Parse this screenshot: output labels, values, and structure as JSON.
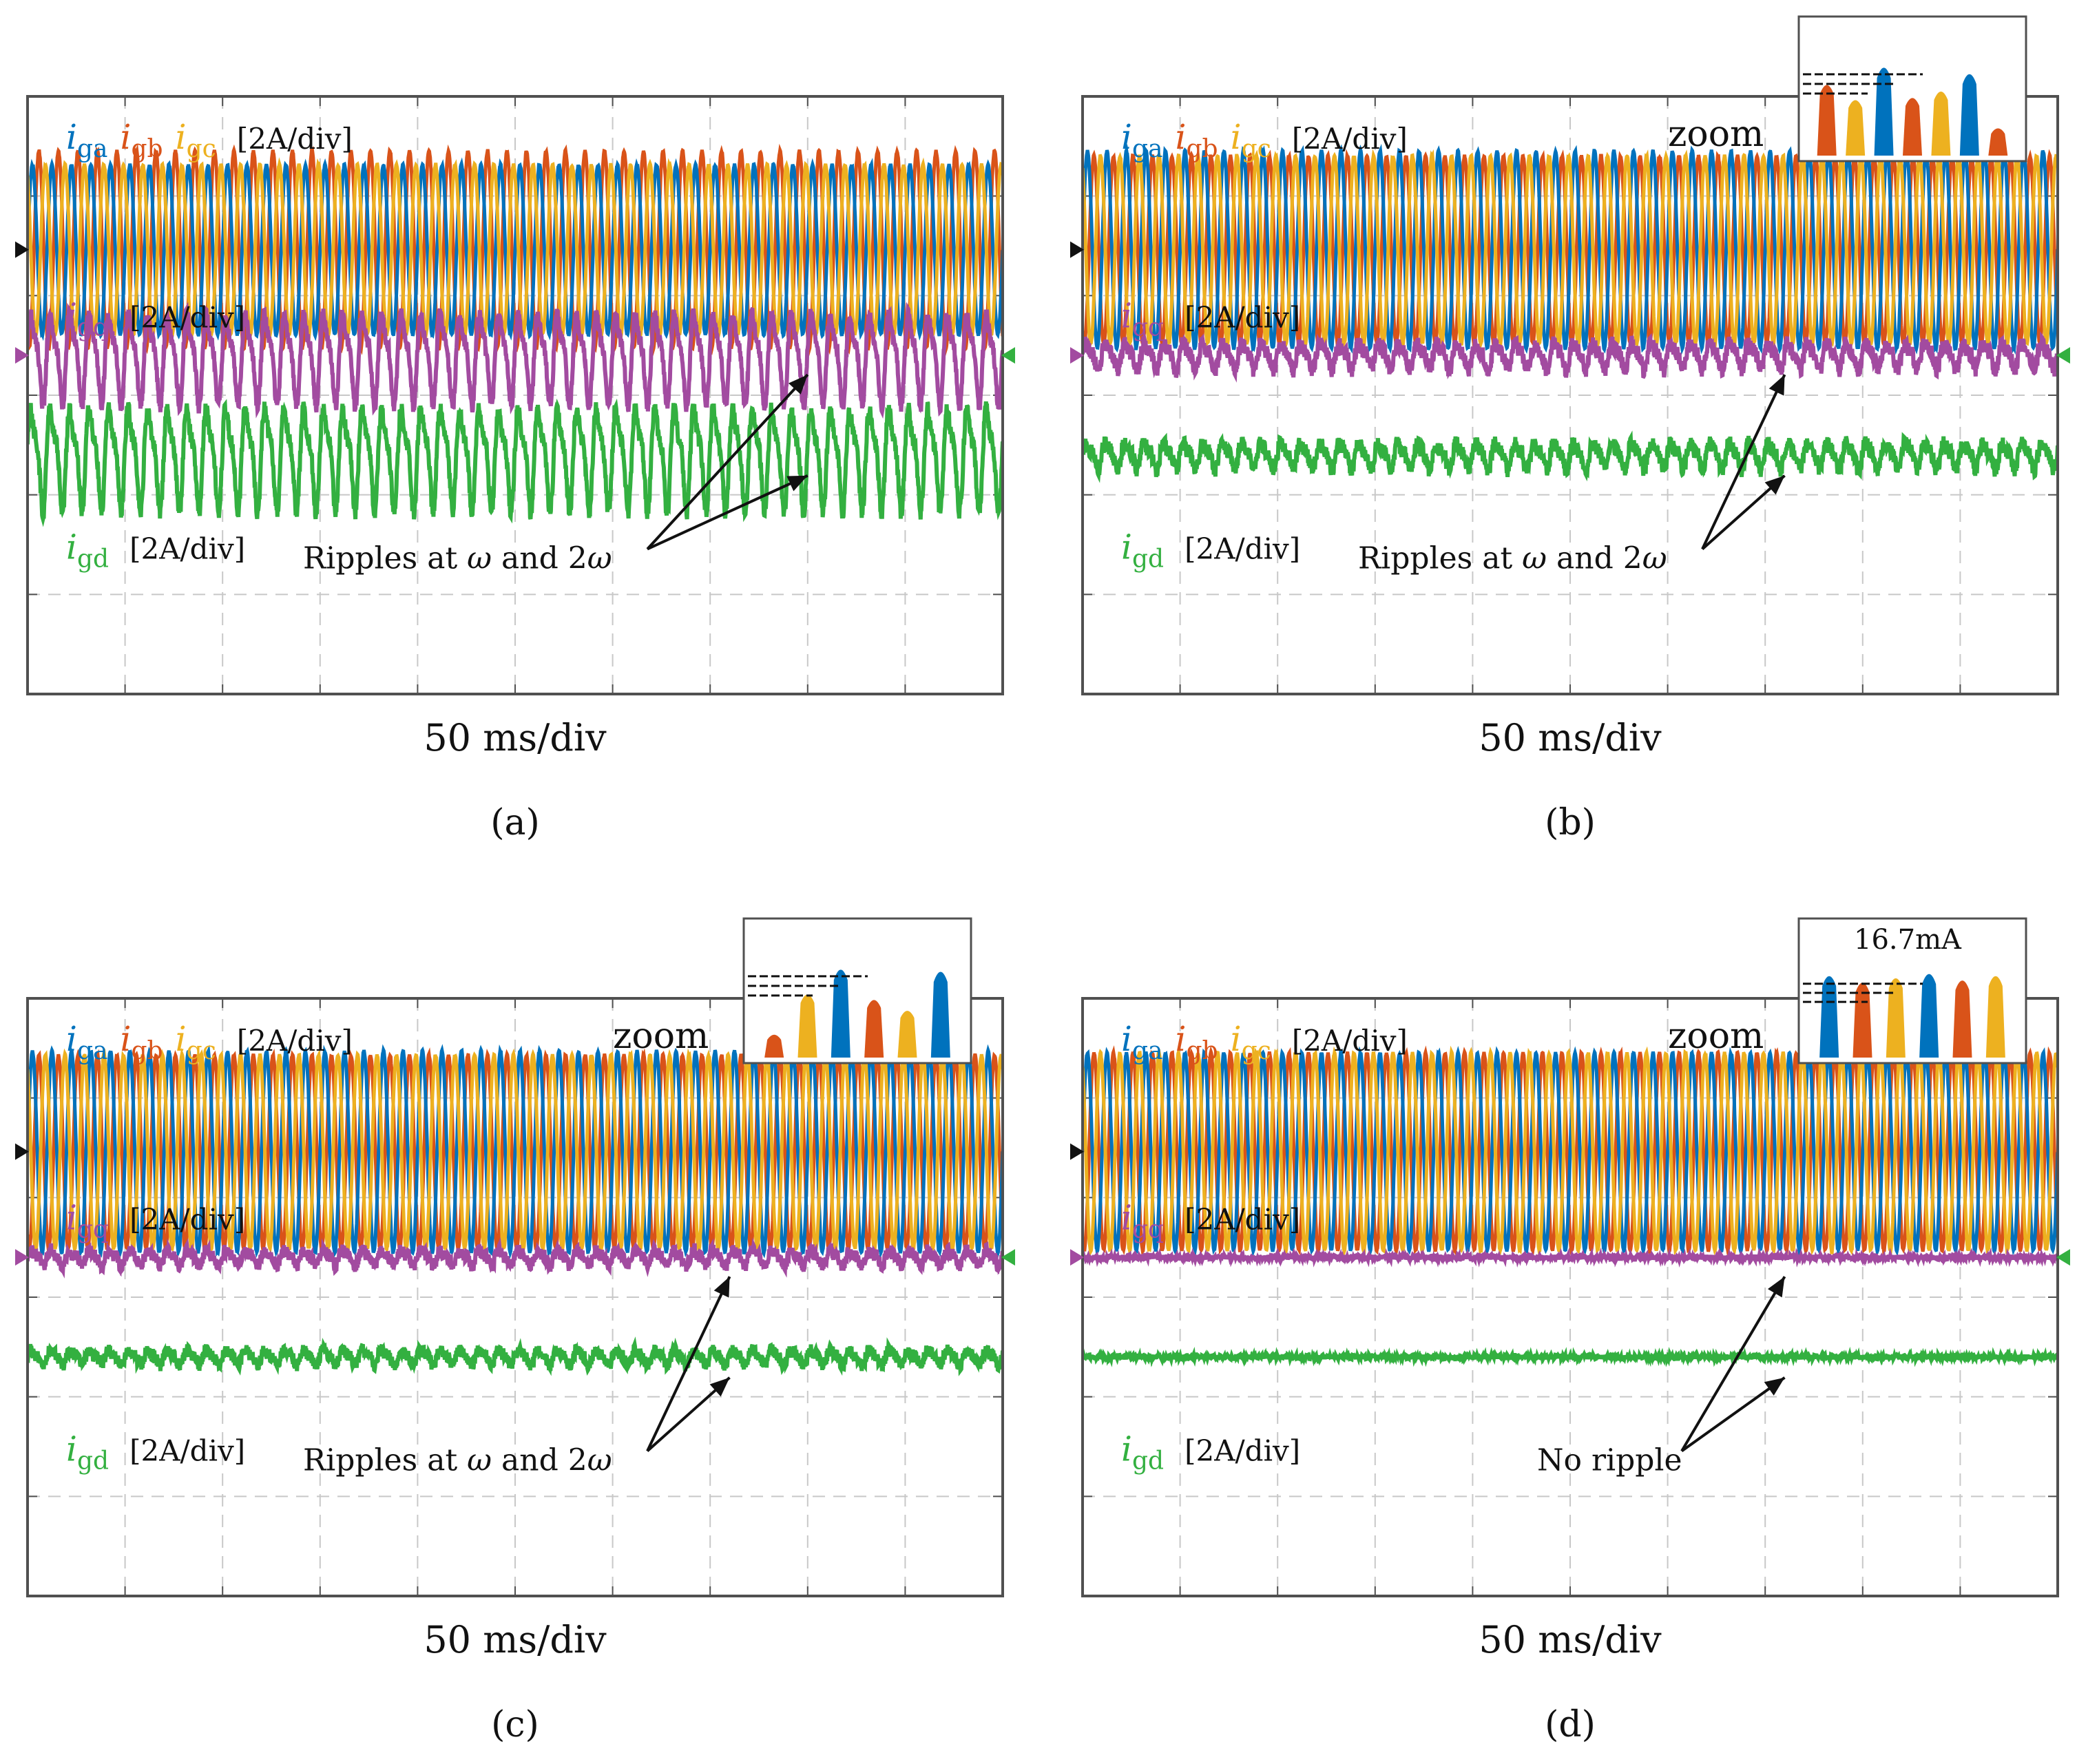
{
  "colors": {
    "ia": "#0072BD",
    "ib": "#D95319",
    "ic": "#EDB120",
    "iq": "#A24BA0",
    "id": "#33B040",
    "grid": "#c8c8c8",
    "frame": "#505050",
    "text": "#111111"
  },
  "chart_data": [
    {
      "panel": "a",
      "type": "line",
      "caption": "(a)",
      "xlabel": "50 ms/div",
      "grid_divisions": {
        "x": 10,
        "y": 6
      },
      "phase_label": {
        "i": "i",
        "a": "ga",
        "b": "gb",
        "c": "gc",
        "scale": "[2A/div]"
      },
      "q_label": {
        "i": "i",
        "sub": "gq",
        "scale": "[2A/div]"
      },
      "d_label": {
        "i": "i",
        "sub": "gd",
        "scale": "[2A/div]"
      },
      "annotation": {
        "pre": "Ripples at ",
        "w1": "ω",
        "mid": " and 2",
        "w2": "ω"
      },
      "zoom_label": "",
      "inset": null,
      "series": [
        {
          "name": "i_ga",
          "color_key": "ia",
          "amplitude_div": 0.86,
          "cycles": 50
        },
        {
          "name": "i_gb",
          "color_key": "ib",
          "amplitude_div": 1.0,
          "cycles": 50
        },
        {
          "name": "i_gc",
          "color_key": "ic",
          "amplitude_div": 0.86,
          "cycles": 50
        },
        {
          "name": "i_gq",
          "color_key": "iq",
          "ripple_div": 0.25,
          "noise_div": 0.04
        },
        {
          "name": "i_gd",
          "color_key": "id",
          "ripple_div": 0.28,
          "noise_div": 0.05
        }
      ]
    },
    {
      "panel": "b",
      "type": "line",
      "caption": "(b)",
      "xlabel": "50 ms/div",
      "grid_divisions": {
        "x": 10,
        "y": 6
      },
      "phase_label": {
        "i": "i",
        "a": "ga",
        "b": "gb",
        "c": "gc",
        "scale": "[2A/div]"
      },
      "q_label": {
        "i": "i",
        "sub": "gq",
        "scale": "[2A/div]"
      },
      "d_label": {
        "i": "i",
        "sub": "gd",
        "scale": "[2A/div]"
      },
      "annotation": {
        "pre": "Ripples at ",
        "w1": "ω",
        "mid": " and 2",
        "w2": "ω"
      },
      "zoom_label": "zoom",
      "inset": {
        "peaks": [
          "ib",
          "ic",
          "ia",
          "ib",
          "ic",
          "ia",
          "ib"
        ],
        "heights": [
          0.62,
          0.48,
          0.78,
          0.5,
          0.56,
          0.72,
          0.22
        ],
        "value_label": ""
      },
      "series": [
        {
          "name": "i_ga",
          "color_key": "ia",
          "amplitude_div": 1.0,
          "cycles": 50
        },
        {
          "name": "i_gb",
          "color_key": "ib",
          "amplitude_div": 0.95,
          "cycles": 50
        },
        {
          "name": "i_gc",
          "color_key": "ic",
          "amplitude_div": 0.95,
          "cycles": 50
        },
        {
          "name": "i_gq",
          "color_key": "iq",
          "ripple_div": 0.07,
          "noise_div": 0.05
        },
        {
          "name": "i_gd",
          "color_key": "id",
          "ripple_div": 0.07,
          "noise_div": 0.05
        }
      ]
    },
    {
      "panel": "c",
      "type": "line",
      "caption": "(c)",
      "xlabel": "50 ms/div",
      "grid_divisions": {
        "x": 10,
        "y": 6
      },
      "phase_label": {
        "i": "i",
        "a": "ga",
        "b": "gb",
        "c": "gc",
        "scale": "[2A/div]"
      },
      "q_label": {
        "i": "i",
        "sub": "gq",
        "scale": "[2A/div]"
      },
      "d_label": {
        "i": "i",
        "sub": "gd",
        "scale": "[2A/div]"
      },
      "annotation": {
        "pre": "Ripples at ",
        "w1": "ω",
        "mid": " and 2",
        "w2": "ω"
      },
      "zoom_label": "zoom",
      "inset": {
        "peaks": [
          "ib",
          "ic",
          "ia",
          "ib",
          "ic",
          "ia"
        ],
        "heights": [
          0.18,
          0.55,
          0.78,
          0.5,
          0.4,
          0.76
        ],
        "value_label": ""
      },
      "series": [
        {
          "name": "i_ga",
          "color_key": "ia",
          "amplitude_div": 1.02,
          "cycles": 50
        },
        {
          "name": "i_gb",
          "color_key": "ib",
          "amplitude_div": 0.98,
          "cycles": 50
        },
        {
          "name": "i_gc",
          "color_key": "ic",
          "amplitude_div": 0.98,
          "cycles": 50
        },
        {
          "name": "i_gq",
          "color_key": "iq",
          "ripple_div": 0.04,
          "noise_div": 0.04
        },
        {
          "name": "i_gd",
          "color_key": "id",
          "ripple_div": 0.04,
          "noise_div": 0.04
        }
      ]
    },
    {
      "panel": "d",
      "type": "line",
      "caption": "(d)",
      "xlabel": "50 ms/div",
      "grid_divisions": {
        "x": 10,
        "y": 6
      },
      "phase_label": {
        "i": "i",
        "a": "ga",
        "b": "gb",
        "c": "gc",
        "scale": "[2A/div]"
      },
      "q_label": {
        "i": "i",
        "sub": "gq",
        "scale": "[2A/div]"
      },
      "d_label": {
        "i": "i",
        "sub": "gd",
        "scale": "[2A/div]"
      },
      "annotation": {
        "pre": "No ripple",
        "w1": "",
        "mid": "",
        "w2": ""
      },
      "zoom_label": "zoom",
      "inset": {
        "peaks": [
          "ia",
          "ib",
          "ic",
          "ia",
          "ib",
          "ic"
        ],
        "heights": [
          0.72,
          0.66,
          0.7,
          0.74,
          0.68,
          0.72
        ],
        "value_label": "16.7mA"
      },
      "series": [
        {
          "name": "i_ga",
          "color_key": "ia",
          "amplitude_div": 1.0,
          "cycles": 50
        },
        {
          "name": "i_gb",
          "color_key": "ib",
          "amplitude_div": 1.0,
          "cycles": 50
        },
        {
          "name": "i_gc",
          "color_key": "ic",
          "amplitude_div": 1.0,
          "cycles": 50
        },
        {
          "name": "i_gq",
          "color_key": "iq",
          "ripple_div": 0.0,
          "noise_div": 0.015
        },
        {
          "name": "i_gd",
          "color_key": "id",
          "ripple_div": 0.0,
          "noise_div": 0.015
        }
      ]
    }
  ]
}
